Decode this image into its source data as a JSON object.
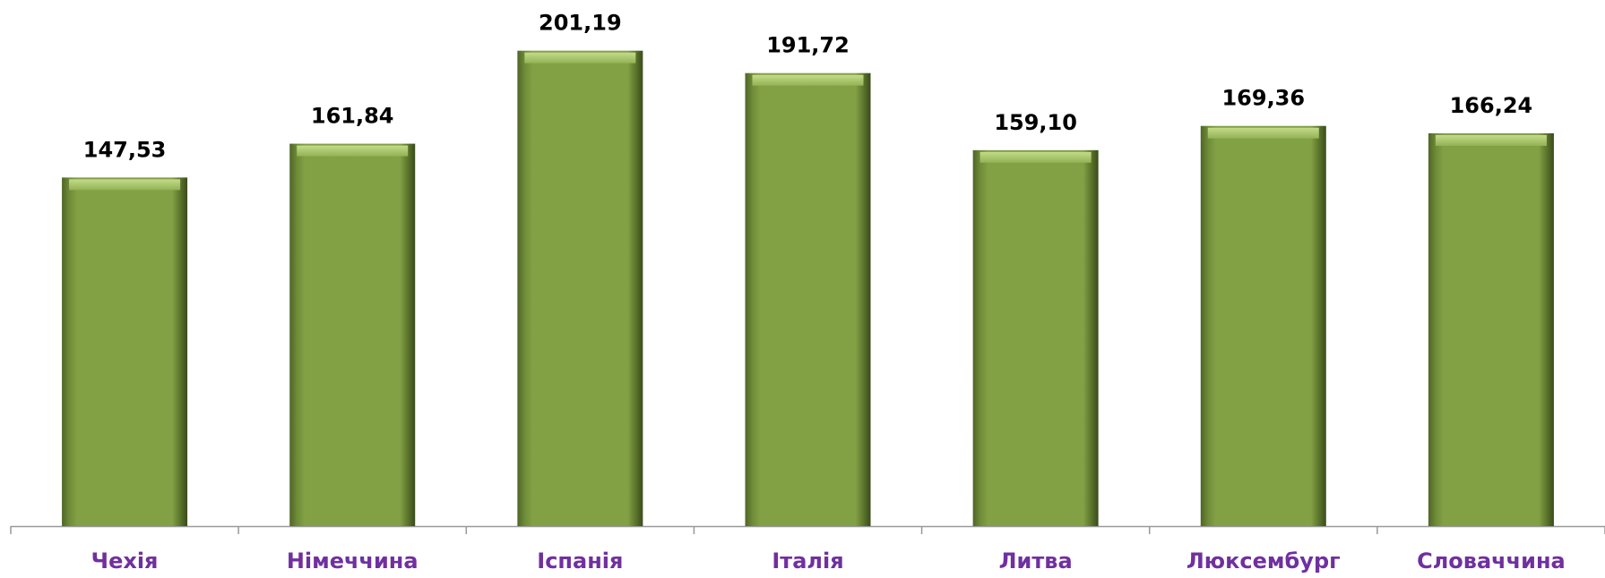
{
  "chart_data": {
    "type": "bar",
    "categories": [
      "Чехія",
      "Німеччина",
      "Іспанія",
      "Італія",
      "Литва",
      "Люксембург",
      "Словаччина"
    ],
    "values": [
      147.53,
      161.84,
      201.19,
      191.72,
      159.1,
      169.36,
      166.24
    ],
    "value_labels": [
      "147,53",
      "161,84",
      "201,19",
      "191,72",
      "159,10",
      "169,36",
      "166,24"
    ],
    "color": "#82a044",
    "ylim": [
      0,
      220
    ]
  }
}
